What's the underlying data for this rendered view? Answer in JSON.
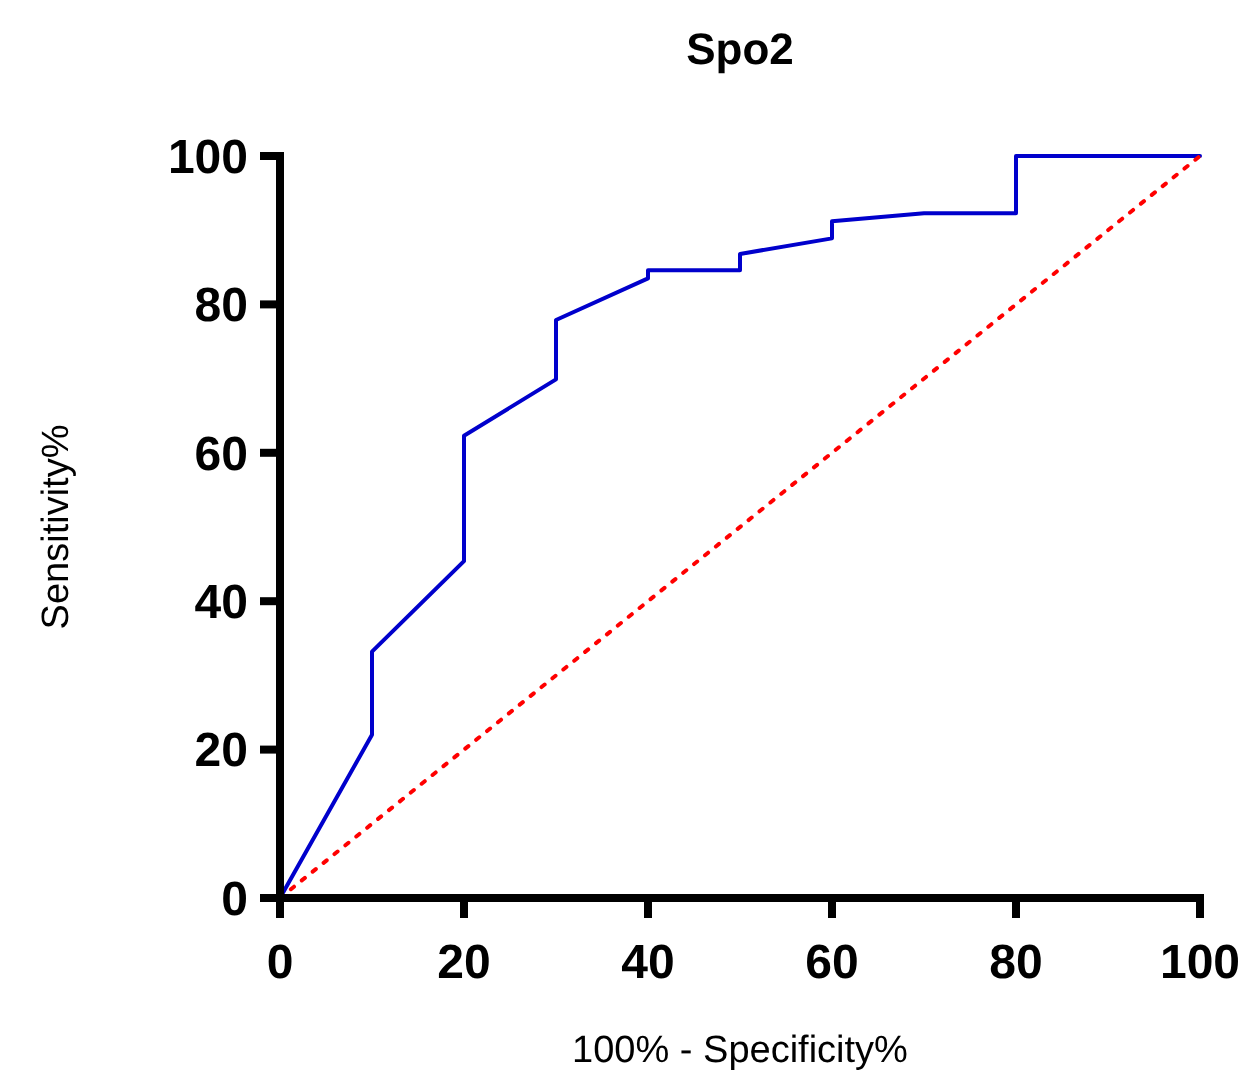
{
  "chart_data": {
    "type": "line",
    "title": "Spo2",
    "xlabel": "100% - Specificity%",
    "ylabel": "Sensitivity%",
    "xlim": [
      0,
      100
    ],
    "ylim": [
      0,
      100
    ],
    "xticks": [
      0,
      20,
      40,
      60,
      80,
      100
    ],
    "yticks": [
      0,
      20,
      40,
      60,
      80,
      100
    ],
    "grid": false,
    "marker": "none",
    "series": [
      {
        "color": "#0000cc",
        "line_style": "solid",
        "x": [
          0,
          10,
          10,
          20,
          20,
          30,
          30,
          40,
          40,
          50,
          50,
          60,
          60,
          70,
          80,
          80,
          100
        ],
        "values": [
          0,
          22,
          33.2,
          45.4,
          62.3,
          69.9,
          77.9,
          83.5,
          84.6,
          84.6,
          86.8,
          88.9,
          91.2,
          92.3,
          92.3,
          100,
          100
        ]
      },
      {
        "color": "#ff0000",
        "line_style": "dotted",
        "x": [
          0,
          100
        ],
        "values": [
          0,
          100
        ]
      }
    ]
  }
}
